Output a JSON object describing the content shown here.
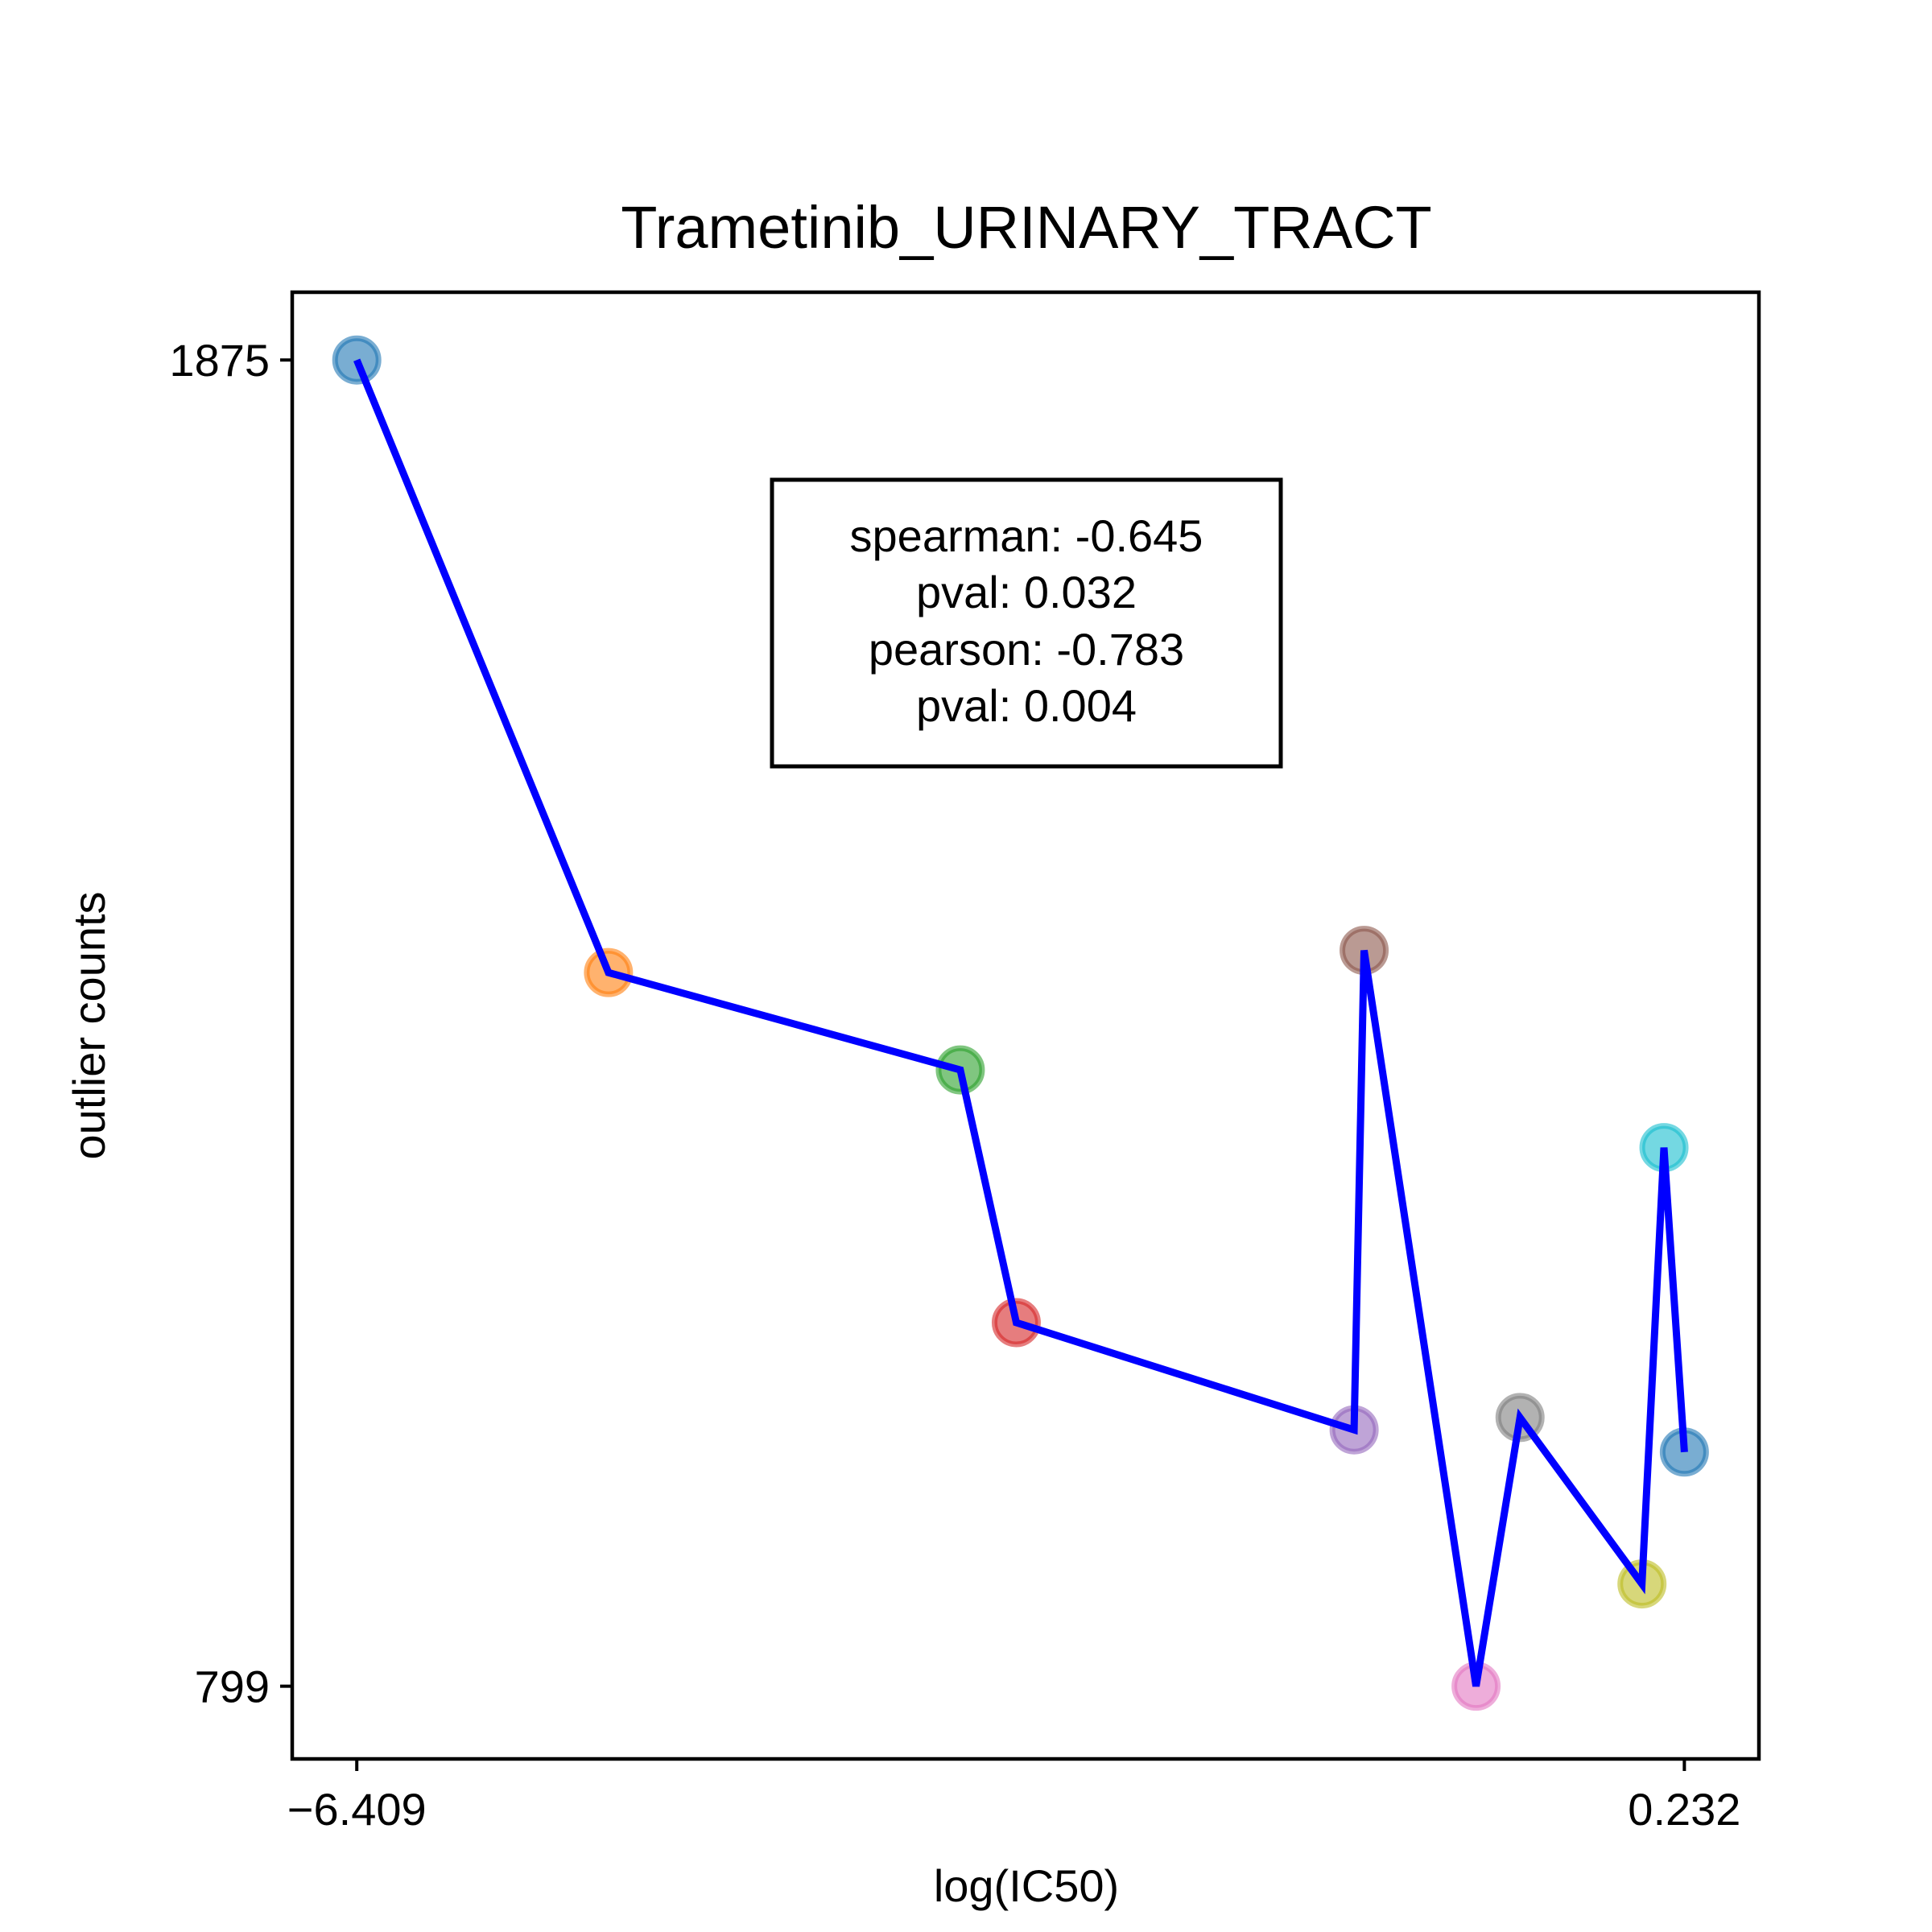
{
  "chart_data": {
    "type": "scatter",
    "title": "Trametinib_URINARY_TRACT",
    "xlabel": "log(IC50)",
    "ylabel": "outlier counts",
    "xlim": [
      -6.732,
      0.605
    ],
    "ylim": [
      740,
      1930
    ],
    "x_ticks": [
      {
        "value": -6.409,
        "label": "−6.409"
      },
      {
        "value": 0.232,
        "label": "0.232"
      }
    ],
    "y_ticks": [
      {
        "value": 1875,
        "label": "1875"
      },
      {
        "value": 799,
        "label": "799"
      }
    ],
    "grid": false,
    "line_color": "#0000ff",
    "points": [
      {
        "x": -6.409,
        "y": 1875,
        "color": "#1f77b4"
      },
      {
        "x": -5.15,
        "y": 1378,
        "color": "#ff7f0e"
      },
      {
        "x": -3.39,
        "y": 1299,
        "color": "#2ca02c"
      },
      {
        "x": -3.11,
        "y": 1094,
        "color": "#d62728"
      },
      {
        "x": -1.42,
        "y": 1007,
        "color": "#9467bd"
      },
      {
        "x": -1.37,
        "y": 1396,
        "color": "#8c564b"
      },
      {
        "x": -0.81,
        "y": 799,
        "color": "#e377c2"
      },
      {
        "x": -0.59,
        "y": 1017,
        "color": "#7f7f7f"
      },
      {
        "x": 0.02,
        "y": 882,
        "color": "#bcbd22"
      },
      {
        "x": 0.13,
        "y": 1236,
        "color": "#17becf"
      },
      {
        "x": 0.232,
        "y": 989,
        "color": "#1f77b4"
      }
    ],
    "annotation": {
      "lines": [
        "spearman: -0.645",
        "pval: 0.032",
        "pearson: -0.783",
        "pval: 0.004"
      ]
    }
  }
}
